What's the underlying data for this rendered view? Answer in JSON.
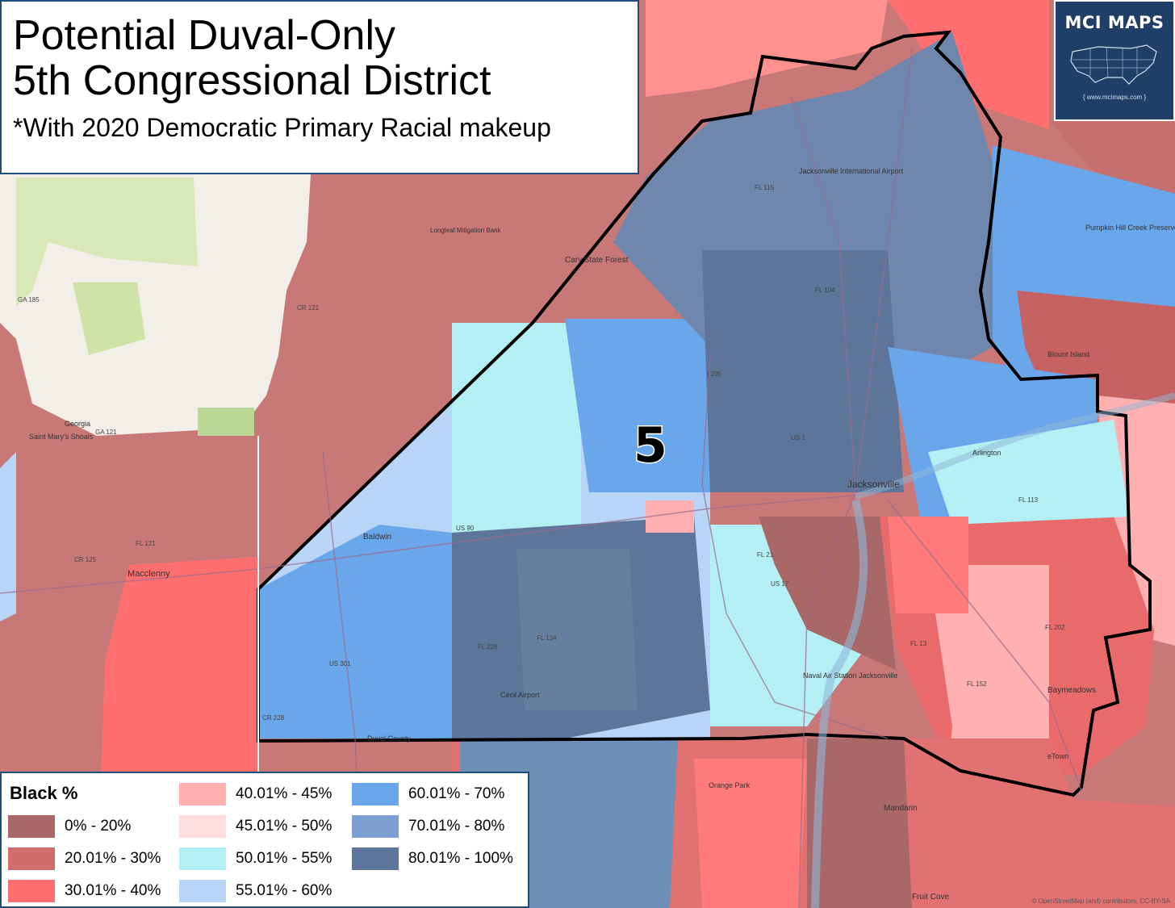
{
  "title": {
    "line1": "Potential Duval-Only",
    "line2": "5th Congressional District",
    "subtitle": "*With 2020 Democratic Primary Racial makeup"
  },
  "logo": {
    "name": "MCI MAPS",
    "url": "{ www.mcimaps.com }",
    "background": "#1f3f66"
  },
  "district_label": "5",
  "legend": {
    "title": "Black %",
    "items": [
      {
        "label": "0% - 20%",
        "color": "#a96868"
      },
      {
        "label": "20.01% - 30%",
        "color": "#d26b6b"
      },
      {
        "label": "30.01% - 40%",
        "color": "#ff6f6f"
      },
      {
        "label": "40.01% - 45%",
        "color": "#ffb0b0"
      },
      {
        "label": "45.01% - 50%",
        "color": "#ffdede"
      },
      {
        "label": "50.01% - 55%",
        "color": "#b3eff3"
      },
      {
        "label": "55.01% - 60%",
        "color": "#b8d4f6"
      },
      {
        "label": "60.01% - 70%",
        "color": "#6aa6ea"
      },
      {
        "label": "70.01% - 80%",
        "color": "#7c9ed0"
      },
      {
        "label": "80.01% - 100%",
        "color": "#5c7599"
      }
    ]
  },
  "place_labels": {
    "jacksonville": "Jacksonville",
    "macclenny": "Macclenny",
    "baldwin": "Baldwin",
    "mandarin": "Mandarin",
    "baymeadows": "Baymeadows",
    "orange_park": "Orange Park",
    "fruit_cove": "Fruit Cove",
    "arlington": "Arlington",
    "cecil_airport": "Cecil Airport",
    "nas": "Naval Air Station Jacksonville",
    "jax_airport": "Jacksonville International Airport",
    "pumpkin_hill": "Pumpkin Hill Creek Preserve State Park",
    "blount_island": "Blount Island",
    "saint_marys": "Saint Mary's Shoals",
    "cary_forest": "Cary State Forest",
    "longleaf": "Longleaf Mitigation Bank",
    "georgia": "Georgia",
    "duval_county": "Duval County",
    "etown": "eTown"
  },
  "road_labels": {
    "us90": "US 90",
    "us301": "US 301",
    "us17": "US 17",
    "us1": "US 1",
    "i295": "I 295",
    "fl115": "FL 115",
    "fl104": "FL 104",
    "fl228": "FL 228",
    "fl134": "FL 134",
    "fl21": "FL 21",
    "fl13": "FL 13",
    "fl152": "FL 152",
    "ga185": "GA 185",
    "cr121": "CR 121",
    "cr125": "CR 125",
    "fl121": "FL 121",
    "cr228": "CR 228",
    "fl202": "FL 202",
    "fl113": "FL 113",
    "ga121": "GA 121"
  },
  "attribution": "© OpenStreetMap (and) contributors, CC-BY-SA"
}
